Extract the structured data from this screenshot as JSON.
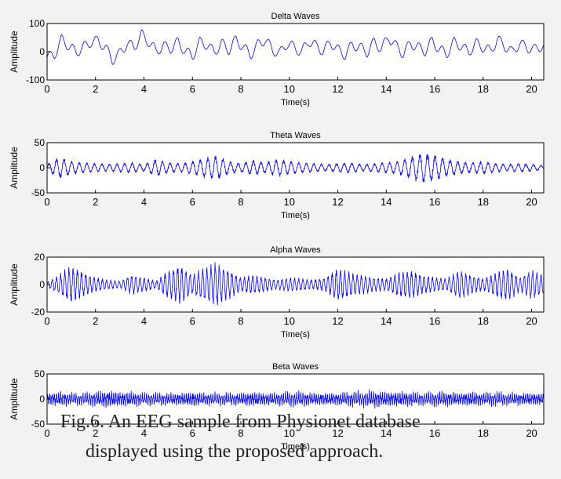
{
  "colors": {
    "background": "#f2f2f2",
    "axes_face": "#ffffff",
    "signal": "#0000ff",
    "text": "#000000"
  },
  "caption": {
    "line1": "Fig.6. An EEG sample from Physionet database",
    "line2": "displayed using the proposed approach."
  },
  "chart_data": [
    {
      "type": "line",
      "title": "Delta Waves",
      "xlabel": "Time(s)",
      "ylabel": "Amplitude",
      "xlim": [
        0,
        20.5
      ],
      "ylim": [
        -100,
        100
      ],
      "xticks": [
        0,
        2,
        4,
        6,
        8,
        10,
        12,
        14,
        16,
        18,
        20
      ],
      "yticks": [
        100,
        0,
        -100
      ],
      "grid": false,
      "series": [
        {
          "x": [
            0,
            0.3,
            0.6,
            0.9,
            1.2,
            1.5,
            1.8,
            2.1,
            2.4,
            2.7,
            3.0,
            3.3,
            3.6,
            3.9,
            4.2,
            4.5,
            4.8,
            5.1,
            5.4,
            5.7,
            6.0,
            6.3,
            6.6,
            6.9,
            7.2,
            7.5,
            7.8,
            8.1,
            8.4,
            8.7,
            9.0,
            9.3,
            9.6,
            9.9,
            10.2,
            10.5,
            10.8,
            11.1,
            11.4,
            11.7,
            12.0,
            12.3,
            12.6,
            12.9,
            13.2,
            13.5,
            13.8,
            14.1,
            14.4,
            14.7,
            15.0,
            15.3,
            15.6,
            15.9,
            16.2,
            16.5,
            16.8,
            17.1,
            17.4,
            17.7,
            18.0,
            18.3,
            18.6,
            18.9,
            19.2,
            19.5,
            19.8,
            20.1,
            20.4
          ],
          "values": [
            0,
            10,
            70,
            45,
            20,
            40,
            60,
            65,
            40,
            -10,
            15,
            55,
            40,
            90,
            60,
            25,
            45,
            35,
            60,
            25,
            5,
            60,
            50,
            20,
            55,
            30,
            70,
            40,
            10,
            50,
            70,
            30,
            15,
            55,
            40,
            20,
            65,
            45,
            25,
            60,
            30,
            10,
            50,
            40,
            20,
            60,
            35,
            80,
            45,
            15,
            55,
            40,
            25,
            65,
            30,
            15,
            60,
            45,
            20,
            55,
            40,
            25,
            70,
            45,
            20,
            55,
            40,
            30,
            45
          ]
        }
      ]
    },
    {
      "type": "line",
      "title": "Theta Waves",
      "xlabel": "Time(s)",
      "ylabel": "Amplitude",
      "xlim": [
        0,
        20.5
      ],
      "ylim": [
        -50,
        50
      ],
      "xticks": [
        0,
        2,
        4,
        6,
        8,
        10,
        12,
        14,
        16,
        18,
        20
      ],
      "yticks": [
        50,
        0,
        -50
      ],
      "grid": false,
      "series": [
        {
          "x": [
            0,
            0.5,
            1,
            1.5,
            2,
            2.5,
            3,
            3.5,
            4,
            4.5,
            5,
            5.5,
            6,
            6.5,
            7,
            7.5,
            8,
            8.5,
            9,
            9.5,
            10,
            10.5,
            11,
            11.5,
            12,
            12.5,
            13,
            13.5,
            14,
            14.5,
            15,
            15.5,
            16,
            16.5,
            17,
            17.5,
            18,
            18.5,
            19,
            19.5,
            20,
            20.5
          ],
          "values": [
            8,
            25,
            15,
            12,
            10,
            8,
            10,
            12,
            8,
            20,
            12,
            10,
            15,
            22,
            28,
            15,
            10,
            18,
            12,
            20,
            15,
            12,
            10,
            8,
            10,
            12,
            8,
            10,
            12,
            15,
            25,
            35,
            30,
            20,
            15,
            12,
            15,
            10,
            8,
            10,
            8,
            5
          ]
        }
      ]
    },
    {
      "type": "line",
      "title": "Alpha Waves",
      "xlabel": "Time(s)",
      "ylabel": "Amplitude",
      "xlim": [
        0,
        20.5
      ],
      "ylim": [
        -20,
        20
      ],
      "xticks": [
        0,
        2,
        4,
        6,
        8,
        10,
        12,
        14,
        16,
        18,
        20
      ],
      "yticks": [
        20,
        0,
        -20
      ],
      "grid": false,
      "series": [
        {
          "x": [
            0,
            0.5,
            1,
            1.5,
            2,
            2.5,
            3,
            3.5,
            4,
            4.5,
            5,
            5.5,
            6,
            6.5,
            7,
            7.5,
            8,
            8.5,
            9,
            9.5,
            10,
            10.5,
            11,
            11.5,
            12,
            12.5,
            13,
            13.5,
            14,
            14.5,
            15,
            15.5,
            16,
            16.5,
            17,
            17.5,
            18,
            18.5,
            19,
            19.5,
            20,
            20.5
          ],
          "values": [
            2,
            8,
            16,
            10,
            6,
            4,
            3,
            8,
            6,
            3,
            12,
            16,
            8,
            14,
            18,
            12,
            6,
            8,
            6,
            4,
            6,
            5,
            4,
            6,
            14,
            10,
            8,
            6,
            5,
            10,
            12,
            8,
            6,
            5,
            12,
            8,
            5,
            10,
            14,
            6,
            12,
            8
          ]
        }
      ]
    },
    {
      "type": "line",
      "title": "Beta Waves",
      "xlabel": "Time(s)",
      "ylabel": "Amplitude",
      "xlim": [
        0,
        20.5
      ],
      "ylim": [
        -50,
        50
      ],
      "xticks": [
        0,
        2,
        4,
        6,
        8,
        10,
        12,
        14,
        16,
        18,
        20
      ],
      "yticks": [
        50,
        0,
        -50
      ],
      "grid": false,
      "series": [
        {
          "x": [
            0,
            0.5,
            1,
            1.5,
            2,
            2.5,
            3,
            3.5,
            4,
            4.5,
            5,
            5.5,
            6,
            6.5,
            7,
            7.5,
            8,
            8.5,
            9,
            9.5,
            10,
            10.5,
            11,
            11.5,
            12,
            12.5,
            13,
            13.5,
            14,
            14.5,
            15,
            15.5,
            16,
            16.5,
            17,
            17.5,
            18,
            18.5,
            19,
            19.5,
            20,
            20.5
          ],
          "values": [
            10,
            12,
            10,
            10,
            12,
            14,
            12,
            12,
            10,
            10,
            10,
            10,
            12,
            10,
            10,
            10,
            10,
            12,
            10,
            10,
            12,
            12,
            10,
            10,
            10,
            12,
            12,
            14,
            12,
            12,
            12,
            10,
            12,
            12,
            10,
            12,
            10,
            12,
            10,
            10,
            10,
            10
          ]
        }
      ]
    }
  ]
}
